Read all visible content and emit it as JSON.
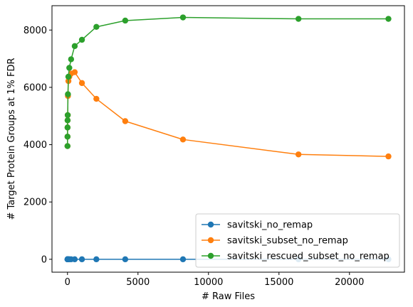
{
  "chart_data": {
    "type": "line",
    "title": "",
    "xlabel": "# Raw Files",
    "ylabel": "# Target Protein Groups at 1% FDR",
    "xlim": [
      -1100,
      23900
    ],
    "ylim": [
      -450,
      8850
    ],
    "xticks": [
      0,
      5000,
      10000,
      15000,
      20000
    ],
    "yticks": [
      0,
      2000,
      4000,
      6000,
      8000
    ],
    "grid": false,
    "legend_position": "lower-right",
    "x": [
      1,
      2,
      4,
      8,
      16,
      32,
      64,
      128,
      256,
      512,
      1024,
      2048,
      4096,
      8192,
      16384,
      22763
    ],
    "series": [
      {
        "name": "savitski_no_remap",
        "color": "#1f77b4",
        "values": [
          0,
          0,
          0,
          0,
          0,
          0,
          0,
          0,
          0,
          0,
          0,
          0,
          0,
          0,
          0,
          0
        ]
      },
      {
        "name": "savitski_subset_no_remap",
        "color": "#ff7f0e",
        "values": [
          3950,
          4280,
          4600,
          4850,
          5030,
          5700,
          6220,
          6370,
          6480,
          6530,
          6150,
          5600,
          4820,
          4180,
          3660,
          3590
        ]
      },
      {
        "name": "savitski_rescued_subset_no_remap",
        "color": "#2ca02c",
        "values": [
          3950,
          4280,
          4600,
          4850,
          5030,
          5760,
          6370,
          6680,
          6980,
          7440,
          7660,
          8110,
          8330,
          8440,
          8390,
          8390
        ]
      }
    ]
  }
}
